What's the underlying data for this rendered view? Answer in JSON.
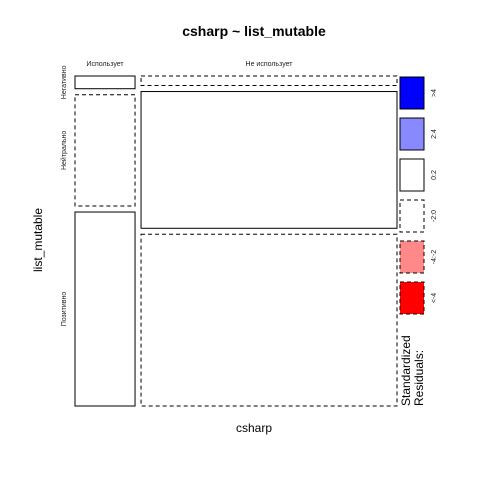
{
  "chart_data": {
    "type": "mosaic",
    "title": "csharp ~ list_mutable",
    "xlabel": "csharp",
    "ylabel": "list_mutable",
    "x_categories": [
      "Использует",
      "Не использует"
    ],
    "y_categories": [
      "Негативно",
      "Нейтрально",
      "Позитивно"
    ],
    "x_proportions": [
      0.19,
      0.81
    ],
    "cells": [
      {
        "x": "Использует",
        "y": "Негативно",
        "proportion": 0.04,
        "residual_band": "0:2"
      },
      {
        "x": "Использует",
        "y": "Нейтрально",
        "proportion": 0.35,
        "residual_band": "-2:0"
      },
      {
        "x": "Использует",
        "y": "Позитивно",
        "proportion": 0.61,
        "residual_band": "0:2"
      },
      {
        "x": "Не использует",
        "y": "Негативно",
        "proportion": 0.03,
        "residual_band": "-2:0"
      },
      {
        "x": "Не использует",
        "y": "Нейтрально",
        "proportion": 0.43,
        "residual_band": "0:2"
      },
      {
        "x": "Не использует",
        "y": "Позитивно",
        "proportion": 0.54,
        "residual_band": "-2:0"
      }
    ],
    "legend": {
      "title_lines": [
        "Standardized",
        "Residuals:"
      ],
      "items": [
        {
          "label": ">4",
          "color": "#0000ff",
          "dashed": false
        },
        {
          "label": "2:4",
          "color": "#8888ff",
          "dashed": false
        },
        {
          "label": "0:2",
          "color": "#ffffff",
          "dashed": false
        },
        {
          "label": "-2:0",
          "color": "#ffffff",
          "dashed": true
        },
        {
          "label": "-4:-2",
          "color": "#ff8888",
          "dashed": true
        },
        {
          "label": "<-4",
          "color": "#ff0000",
          "dashed": true
        }
      ]
    }
  }
}
